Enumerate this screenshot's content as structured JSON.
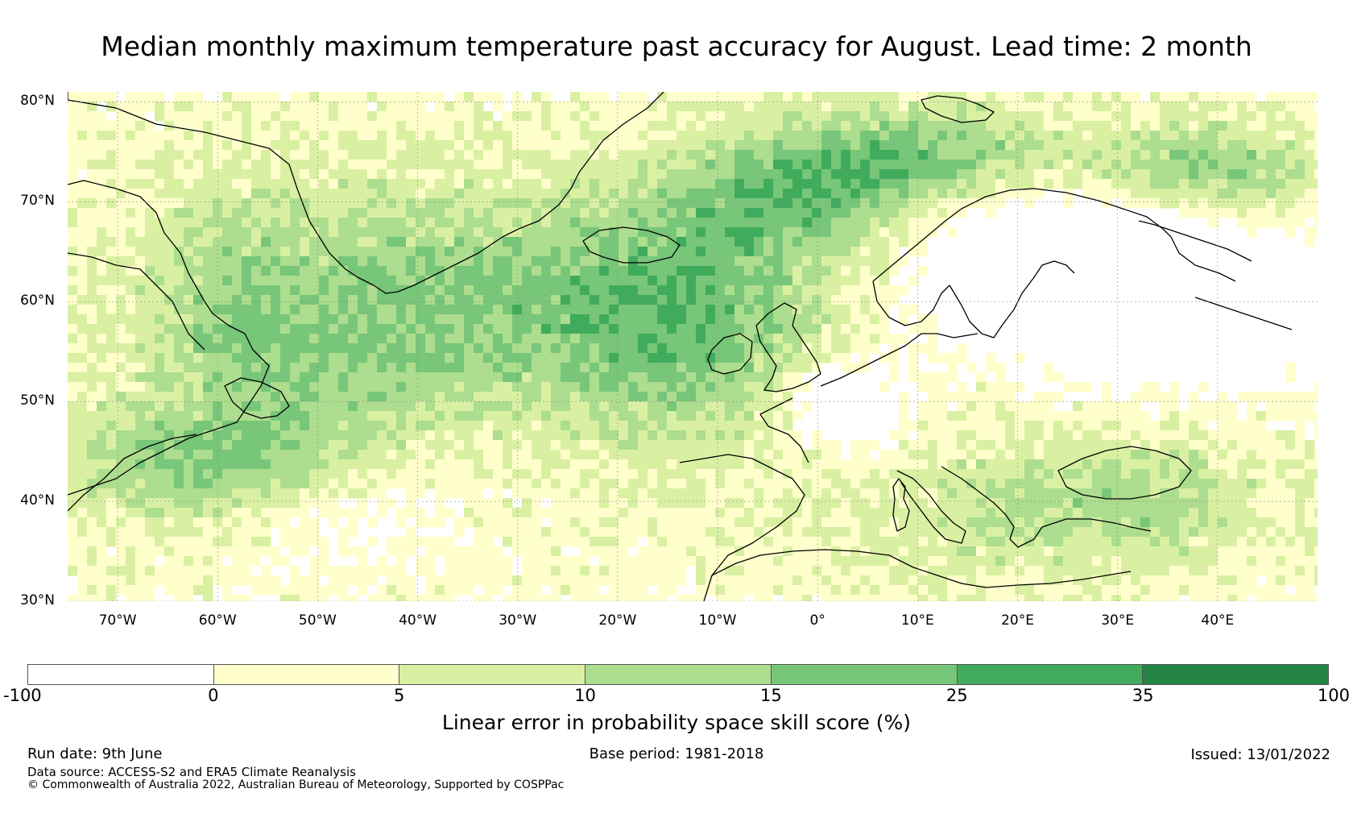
{
  "title": "Median monthly maximum temperature past accuracy for August. Lead time: 2 month",
  "map": {
    "region": "North Atlantic and Europe",
    "lat_labels": [
      "80°N",
      "70°N",
      "60°N",
      "50°N",
      "40°N",
      "30°N"
    ],
    "lat_values": [
      80,
      70,
      60,
      50,
      40,
      30
    ],
    "lon_labels": [
      "70°W",
      "60°W",
      "50°W",
      "40°W",
      "30°W",
      "20°W",
      "10°W",
      "0°",
      "10°E",
      "20°E",
      "30°E",
      "40°E"
    ],
    "lon_values": [
      -70,
      -60,
      -50,
      -40,
      -30,
      -20,
      -10,
      0,
      10,
      20,
      30,
      40
    ],
    "lat_range": [
      30,
      81
    ],
    "lon_range": [
      -75,
      50
    ],
    "gridlines": true
  },
  "colorbar": {
    "ticks": [
      "-100",
      "0",
      "5",
      "10",
      "15",
      "25",
      "35",
      "100"
    ],
    "colors": [
      "#ffffff",
      "#ffffcc",
      "#d9f0a3",
      "#addd8e",
      "#78c679",
      "#41ab5d",
      "#238443"
    ],
    "label": "Linear error in probability space skill score (%)"
  },
  "footer": {
    "run_date": "Run date: 9th June",
    "base_period": "Base period: 1981-2018",
    "issued": "Issued: 13/01/2022",
    "data_source": "Data source: ACCESS-S2 and ERA5 Climate Reanalysis",
    "copyright": "© Commonwealth of Australia 2022, Australian Bureau of Meteorology, Supported by COSPPac"
  }
}
